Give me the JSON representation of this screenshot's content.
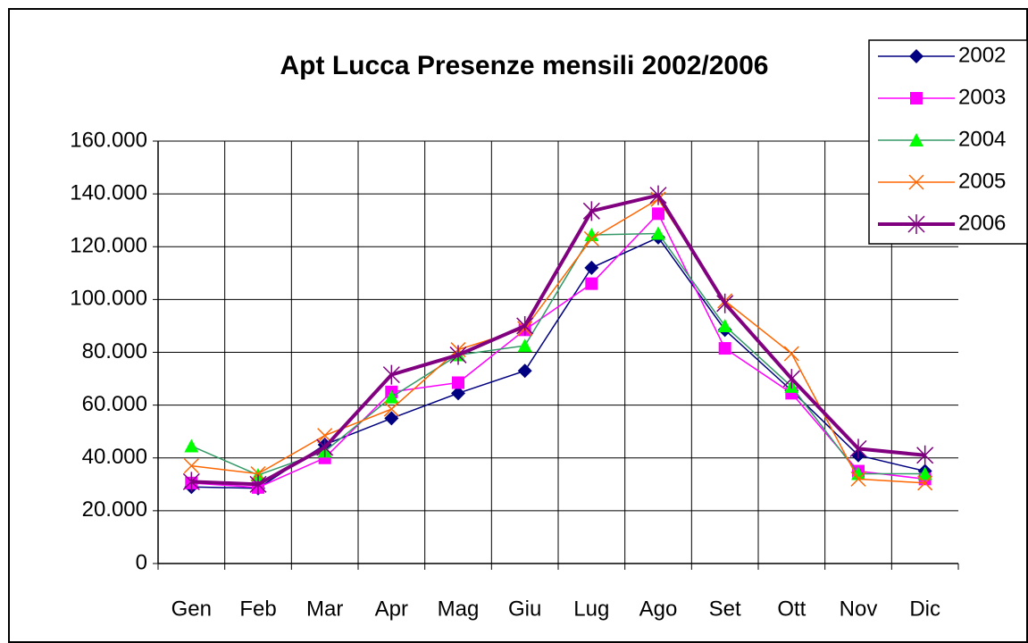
{
  "chart_data": {
    "type": "line",
    "title": "Apt Lucca Presenze mensili 2002/2006",
    "categories": [
      "Gen",
      "Feb",
      "Mar",
      "Apr",
      "Mag",
      "Giu",
      "Lug",
      "Ago",
      "Set",
      "Ott",
      "Nov",
      "Dic"
    ],
    "series": [
      {
        "name": "2002",
        "color": "#000080",
        "marker": "diamond",
        "line_width": 1.5,
        "values": [
          29000,
          28500,
          45000,
          55000,
          64500,
          73000,
          112000,
          123500,
          88500,
          65500,
          41000,
          35000
        ]
      },
      {
        "name": "2003",
        "color": "#ff00ff",
        "marker": "square",
        "line_width": 1.5,
        "values": [
          30500,
          28800,
          40000,
          65000,
          68500,
          88500,
          106000,
          132500,
          81500,
          64500,
          35000,
          32000
        ]
      },
      {
        "name": "2004",
        "color": "#00ff00",
        "line_color": "#339966",
        "marker": "triangle",
        "line_width": 1.5,
        "values": [
          44500,
          33500,
          42500,
          63000,
          79000,
          82500,
          124500,
          125000,
          90000,
          67000,
          34000,
          34000
        ]
      },
      {
        "name": "2005",
        "color": "#ff6600",
        "marker": "x",
        "line_width": 1.5,
        "values": [
          37000,
          34000,
          48500,
          58500,
          81000,
          89000,
          123000,
          138000,
          99500,
          79500,
          32000,
          30500
        ]
      },
      {
        "name": "2006",
        "color": "#800080",
        "marker": "star",
        "line_width": 4,
        "values": [
          31000,
          30000,
          44000,
          71500,
          79000,
          90000,
          133500,
          139500,
          98500,
          70000,
          43500,
          41000
        ]
      }
    ],
    "ylim": [
      0,
      160000
    ],
    "yticks": [
      0,
      {
        "value": 20000,
        "label": "20.000"
      },
      {
        "value": 40000,
        "label": "40.000"
      },
      {
        "value": 60000,
        "label": "60.000"
      },
      {
        "value": 80000,
        "label": "80.000"
      },
      {
        "value": 100000,
        "label": "100.000"
      },
      {
        "value": 120000,
        "label": "120.000"
      },
      {
        "value": 140000,
        "label": "140.000"
      },
      {
        "value": 160000,
        "label": "160.000"
      }
    ],
    "grid": true,
    "legend": "top-right"
  }
}
